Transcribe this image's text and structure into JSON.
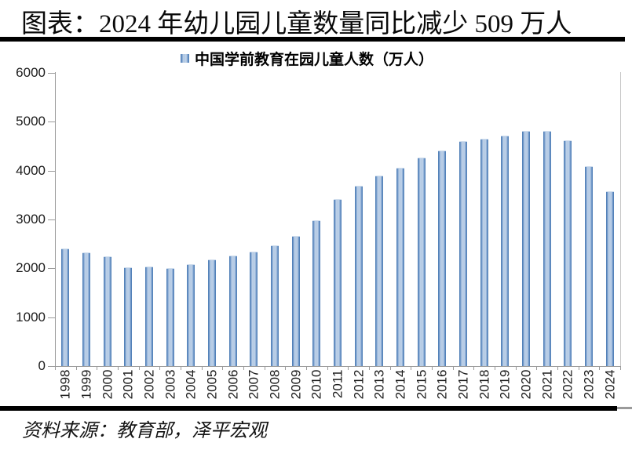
{
  "page": {
    "title": "图表：2024 年幼儿园儿童数量同比减少 509 万人",
    "source": "资料来源：教育部，泽平宏观"
  },
  "legend": {
    "label": "中国学前教育在园儿童人数（万人）"
  },
  "colors": {
    "bar_edge": "#4678b2",
    "bar_light": "#c9d9ec",
    "bar_core": "#8aabd3",
    "axis": "#9a9a9a",
    "rule": "#000000",
    "text": "#1c1c1c"
  },
  "chart_data": {
    "type": "bar",
    "title": "图表：2024 年幼儿园儿童数量同比减少 509 万人",
    "legend_entries": [
      "中国学前教育在园儿童人数（万人）"
    ],
    "legend_position": "top",
    "grid": false,
    "categories": [
      "1998",
      "1999",
      "2000",
      "2001",
      "2002",
      "2003",
      "2004",
      "2005",
      "2006",
      "2007",
      "2008",
      "2009",
      "2010",
      "2011",
      "2012",
      "2013",
      "2014",
      "2015",
      "2016",
      "2017",
      "2018",
      "2019",
      "2020",
      "2021",
      "2022",
      "2023",
      "2024"
    ],
    "values": [
      2403,
      2326,
      2244,
      2022,
      2036,
      2004,
      2089,
      2179,
      2264,
      2349,
      2475,
      2658,
      2977,
      3424,
      3686,
      3895,
      4051,
      4265,
      4414,
      4600,
      4656,
      4714,
      4818,
      4805,
      4627,
      4093,
      3584
    ],
    "xlabel": "",
    "ylabel": "",
    "ylim": [
      0,
      6000
    ],
    "yticks": [
      0,
      1000,
      2000,
      3000,
      4000,
      5000,
      6000
    ],
    "source": "资料来源：教育部，泽平宏观"
  }
}
